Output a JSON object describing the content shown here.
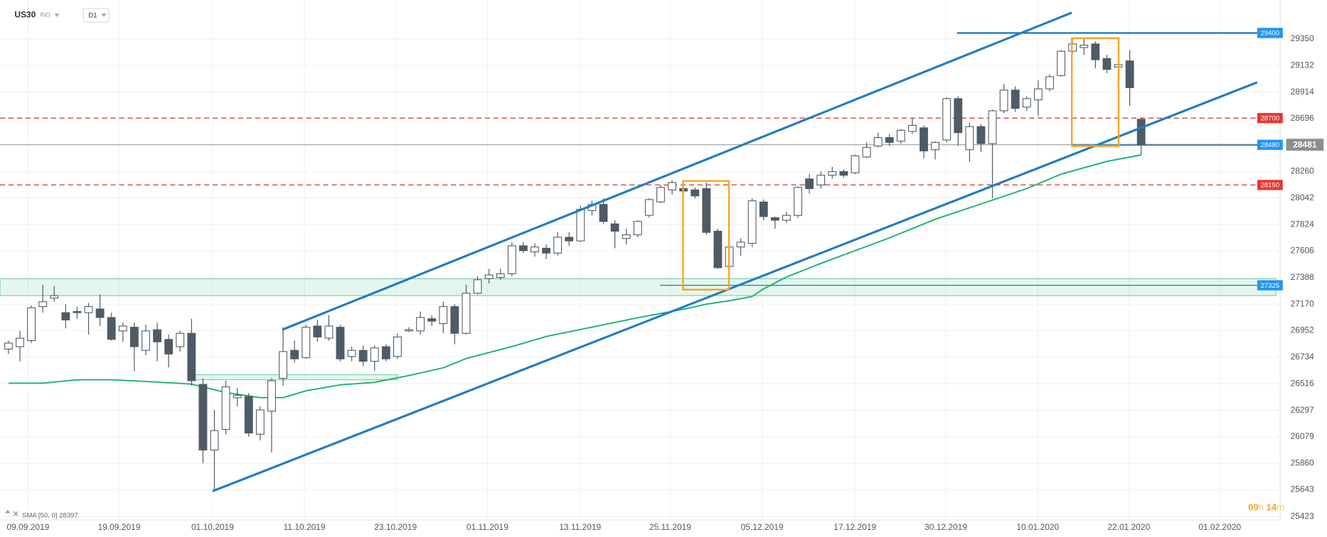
{
  "chart_data": {
    "type": "candlestick",
    "symbol": "US30",
    "market": "IND",
    "timeframe": "D1",
    "xlim": [
      -0.74,
      110.78
    ],
    "ylim": [
      25339,
      29671
    ],
    "yticks": [
      29350,
      29132,
      28914,
      28696,
      28260,
      28042,
      27824,
      27606,
      27388,
      27170,
      26952,
      26734,
      26516,
      26297,
      26079,
      25860,
      25643,
      25423
    ],
    "xticks": [
      {
        "value": 1.71,
        "label": "09.09.2019"
      },
      {
        "value": 9.67,
        "label": "19.09.2019"
      },
      {
        "value": 17.84,
        "label": "01.10.2019"
      },
      {
        "value": 25.87,
        "label": "11.10.2019"
      },
      {
        "value": 33.83,
        "label": "23.10.2019"
      },
      {
        "value": 41.86,
        "label": "01.11.2019"
      },
      {
        "value": 49.96,
        "label": "13.11.2019"
      },
      {
        "value": 57.84,
        "label": "25.11.2019"
      },
      {
        "value": 65.87,
        "label": "05.12.2019"
      },
      {
        "value": 73.98,
        "label": "17.12.2019"
      },
      {
        "value": 81.93,
        "label": "30.12.2019"
      },
      {
        "value": 89.96,
        "label": "10.01.2020"
      },
      {
        "value": 97.92,
        "label": "22.01.2020"
      },
      {
        "value": 105.87,
        "label": "01.02.2020"
      }
    ],
    "grid": true,
    "up_color": "#ffffff",
    "down_color": "#4f5b66",
    "candles": {
      "open": [
        26800,
        26820,
        26870,
        27150,
        27220,
        27100,
        27110,
        27100,
        27130,
        27060,
        26950,
        26980,
        26790,
        26960,
        26880,
        26820,
        26930,
        26510,
        25970,
        26140,
        26400,
        26410,
        26100,
        26290,
        26560,
        26790,
        26730,
        26990,
        26890,
        26980,
        26740,
        26790,
        26700,
        26820,
        26740,
        26950,
        26950,
        27050,
        27010,
        27150,
        26930,
        27260,
        27380,
        27390,
        27420,
        27650,
        27600,
        27630,
        27590,
        27720,
        27690,
        27940,
        27990,
        27830,
        27710,
        27740,
        27900,
        28010,
        28110,
        28120,
        28110,
        28120,
        27770,
        27480,
        27640,
        27670,
        28010,
        27880,
        27860,
        27900,
        28200,
        28150,
        28230,
        28260,
        28250,
        28380,
        28470,
        28540,
        28510,
        28590,
        28620,
        28440,
        28520,
        28860,
        28440,
        28630,
        28490,
        28760,
        28930,
        28790,
        28850,
        28940,
        29050,
        29250,
        29280,
        29310,
        29190,
        29120,
        29170,
        28690
      ],
      "high": [
        26870,
        26950,
        27160,
        27330,
        27320,
        27170,
        27150,
        27180,
        27250,
        27100,
        27020,
        27020,
        27000,
        27020,
        26920,
        26950,
        27050,
        26560,
        26300,
        26540,
        26480,
        26440,
        26330,
        26560,
        26980,
        26870,
        27000,
        27040,
        27080,
        27000,
        26820,
        26830,
        26830,
        26840,
        26930,
        26980,
        27110,
        27080,
        27190,
        27170,
        27330,
        27400,
        27460,
        27460,
        27680,
        27680,
        27670,
        27660,
        27760,
        27760,
        27980,
        28020,
        28040,
        27860,
        27790,
        27860,
        28040,
        28150,
        28190,
        28140,
        28130,
        28170,
        27790,
        27660,
        27710,
        28040,
        28030,
        27890,
        27930,
        28140,
        28240,
        28260,
        28300,
        28280,
        28400,
        28500,
        28580,
        28570,
        28610,
        28700,
        28640,
        28510,
        28870,
        28880,
        28660,
        28650,
        28770,
        28980,
        28960,
        28880,
        29010,
        29060,
        29260,
        29350,
        29350,
        29330,
        29220,
        29180,
        29260,
        28700
      ],
      "low": [
        26760,
        26700,
        26850,
        27100,
        27190,
        26970,
        27050,
        26920,
        26990,
        26870,
        26860,
        26620,
        26750,
        26700,
        26650,
        26780,
        26500,
        25860,
        25640,
        26100,
        26330,
        26080,
        26050,
        25950,
        26500,
        26690,
        26720,
        26860,
        26870,
        26700,
        26700,
        26660,
        26620,
        26700,
        26720,
        26940,
        26920,
        26990,
        26930,
        26840,
        26920,
        27250,
        27340,
        27370,
        27400,
        27590,
        27560,
        27540,
        27570,
        27650,
        27680,
        27900,
        27830,
        27630,
        27660,
        27720,
        27880,
        28000,
        28070,
        28080,
        28040,
        27740,
        27460,
        27440,
        27570,
        27640,
        27860,
        27790,
        27840,
        27880,
        28080,
        28120,
        28200,
        28210,
        28240,
        28370,
        28460,
        28470,
        28490,
        28570,
        28370,
        28360,
        28500,
        28470,
        28340,
        28420,
        28040,
        28740,
        28750,
        28760,
        28720,
        28920,
        29040,
        29230,
        29220,
        29110,
        29070,
        28950,
        28800,
        28400
      ],
      "close": [
        26850,
        26890,
        27140,
        27190,
        27240,
        27040,
        27100,
        27150,
        27060,
        26880,
        26990,
        26820,
        26950,
        26860,
        26760,
        26930,
        26540,
        25970,
        26130,
        26490,
        26420,
        26110,
        26300,
        26540,
        26780,
        26720,
        26980,
        26900,
        26990,
        26720,
        26790,
        26700,
        26810,
        26720,
        26900,
        26960,
        27060,
        27030,
        27150,
        26930,
        27260,
        27370,
        27410,
        27420,
        27650,
        27610,
        27640,
        27590,
        27720,
        27690,
        27950,
        27990,
        27850,
        27770,
        27740,
        27850,
        28030,
        28130,
        28170,
        28100,
        28060,
        27760,
        27470,
        27640,
        27680,
        28020,
        27890,
        27860,
        27900,
        28130,
        28120,
        28230,
        28260,
        28230,
        28390,
        28460,
        28540,
        28500,
        28600,
        28640,
        28430,
        28500,
        28860,
        28580,
        28630,
        28490,
        28760,
        28930,
        28780,
        28860,
        28940,
        29040,
        29250,
        29310,
        29300,
        29180,
        29100,
        29140,
        28950,
        28481
      ]
    },
    "sma": {
      "name": "SMA [50, 0] 28397",
      "color": "#1db36b",
      "x": [
        0,
        3,
        6,
        9,
        12,
        16,
        19,
        22,
        24,
        26,
        29,
        32,
        35,
        38,
        40,
        44,
        47,
        51,
        55,
        59,
        61,
        63,
        65,
        66,
        68,
        71,
        74,
        77,
        81,
        85,
        89,
        92,
        96,
        99
      ],
      "values": [
        26520,
        26520,
        26548,
        26548,
        26534,
        26513,
        26443,
        26401,
        26401,
        26457,
        26506,
        26527,
        26583,
        26646,
        26723,
        26821,
        26904,
        26981,
        27058,
        27128,
        27170,
        27198,
        27233,
        27296,
        27393,
        27505,
        27610,
        27715,
        27868,
        27994,
        28120,
        28239,
        28344,
        28397
      ]
    },
    "levels": [
      {
        "value": 29400,
        "color": "#1f7cc1",
        "label_color": "#2196f3",
        "style": "solid",
        "from": 82.9
      },
      {
        "value": 28700,
        "color": "#e0312f",
        "label_color": "#e53935",
        "style": "dashed"
      },
      {
        "value": 28480,
        "color": "#1f7cc1",
        "label_color": "#2196f3",
        "style": "solid",
        "from": 92.94
      },
      {
        "value": 28150,
        "color": "#e0312f",
        "label_color": "#e53935",
        "style": "dashed"
      },
      {
        "value": 27325,
        "color": "#1f7cc1",
        "label_color": "#2196f3",
        "style": "thin",
        "from": 56.95
      }
    ],
    "last_price": {
      "value": 28481,
      "color": "#8a8f94"
    },
    "zones": [
      {
        "low": 27240,
        "high": 27379
      },
      {
        "low": 26548,
        "high": 26590,
        "from": 16,
        "to": 34
      }
    ],
    "trendlines": [
      {
        "color": "#1f7cc1",
        "x": [
          23.94,
          92.94
        ],
        "values": [
          26960,
          29567
        ]
      },
      {
        "color": "#1f7cc1",
        "x": [
          17.84,
          109.14
        ],
        "values": [
          25632,
          28994
        ]
      }
    ],
    "boxes": [
      {
        "color": "#f5a623",
        "from": 58.96,
        "to": 62.97,
        "low": 27289,
        "high": 28183
      },
      {
        "color": "#f5a623",
        "from": 92.94,
        "to": 97.03,
        "low": 28470,
        "high": 29357
      }
    ],
    "timer": {
      "hours": "09",
      "h": "h",
      "minutes": "14",
      "m": "m"
    }
  }
}
